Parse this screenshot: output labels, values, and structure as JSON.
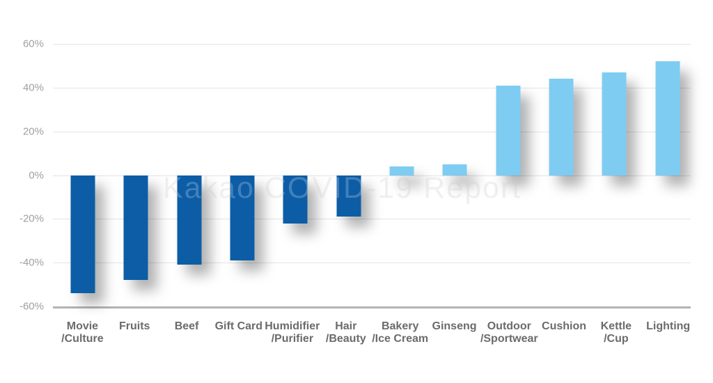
{
  "watermark": {
    "text": "Kakao COVID-19 Report"
  },
  "chart_data": {
    "type": "bar",
    "title": "",
    "xlabel": "",
    "ylabel": "",
    "unit": "%",
    "categories": [
      "Movie\n/Culture",
      "Fruits",
      "Beef",
      "Gift Card",
      "Humidifier\n/Purifier",
      "Hair\n/Beauty",
      "Bakery\n/Ice Cream",
      "Ginseng",
      "Outdoor\n/Sportwear",
      "Cushion",
      "Kettle\n/Cup",
      "Lighting"
    ],
    "values": [
      -54,
      -48,
      -41,
      -39,
      -22,
      -19,
      4,
      5,
      41,
      44,
      47,
      52
    ],
    "ylim": [
      -60,
      60
    ],
    "ytick_step": 20,
    "ytick_labels": [
      "60%",
      "40%",
      "20%",
      "0%",
      "-20%",
      "-40%",
      "-60%"
    ],
    "grid": true,
    "legend": false,
    "colors": {
      "positive_bar": "#7fccf2",
      "negative_bar": "#0c5da6",
      "gridline": "#e4e4e4",
      "axis_baseline": "#b3b3b3",
      "ytick_text": "#a0a0a0",
      "xtick_text": "#6b6b6b",
      "watermark_text": "#ececec"
    }
  }
}
